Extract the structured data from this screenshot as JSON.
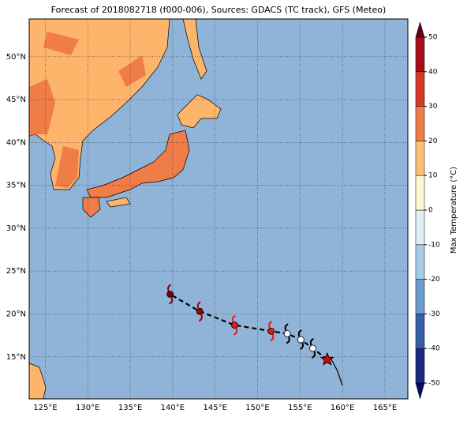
{
  "title": "Forecast of 2018082718 (f000-006), Sources: GDACS (TC track), GFS (Meteo)",
  "map": {
    "lon_range": [
      123.1,
      167.7
    ],
    "lat_range": [
      10.1,
      54.4
    ],
    "grid": true,
    "lon_ticks": [
      {
        "value": 125,
        "label": "125°E"
      },
      {
        "value": 130,
        "label": "130°E"
      },
      {
        "value": 135,
        "label": "135°E"
      },
      {
        "value": 140,
        "label": "140°E"
      },
      {
        "value": 145,
        "label": "145°E"
      },
      {
        "value": 150,
        "label": "150°E"
      },
      {
        "value": 155,
        "label": "155°E"
      },
      {
        "value": 160,
        "label": "160°E"
      },
      {
        "value": 165,
        "label": "165°E"
      }
    ],
    "lat_ticks": [
      {
        "value": 15,
        "label": "15°N"
      },
      {
        "value": 20,
        "label": "20°N"
      },
      {
        "value": 25,
        "label": "25°N"
      },
      {
        "value": 30,
        "label": "30°N"
      },
      {
        "value": 35,
        "label": "35°N"
      },
      {
        "value": 40,
        "label": "40°N"
      },
      {
        "value": 45,
        "label": "45°N"
      },
      {
        "value": 50,
        "label": "50°N"
      }
    ]
  },
  "colorbar": {
    "label": "Max Temperature (°C)",
    "range": [
      -50,
      50
    ],
    "ticks": [
      -50,
      -40,
      -30,
      -20,
      -10,
      0,
      10,
      20,
      30,
      40,
      50
    ],
    "colors": [
      "#1c2a80",
      "#3560a8",
      "#6c9ccc",
      "#a4cde4",
      "#dff0f4",
      "#fff6d2",
      "#fdbf78",
      "#f07c48",
      "#d63a26",
      "#a60f16"
    ],
    "extend_colors": [
      "#0a0c5c",
      "#660010"
    ]
  },
  "track": [
    {
      "lon": 158.2,
      "lat": 14.7,
      "color": "#e00000",
      "marker": "star"
    },
    {
      "lon": 156.5,
      "lat": 16.0,
      "color": "#ffffff",
      "marker": "storm"
    },
    {
      "lon": 155.1,
      "lat": 17.0,
      "color": "#ffffff",
      "marker": "storm"
    },
    {
      "lon": 153.5,
      "lat": 17.7,
      "color": "#ffffff",
      "marker": "storm"
    },
    {
      "lon": 151.6,
      "lat": 18.0,
      "color": "#e41a1c",
      "marker": "storm"
    },
    {
      "lon": 147.3,
      "lat": 18.7,
      "color": "#e41a1c",
      "marker": "storm"
    },
    {
      "lon": 143.2,
      "lat": 20.3,
      "color": "#a00000",
      "marker": "storm"
    },
    {
      "lon": 139.7,
      "lat": 22.3,
      "color": "#800000",
      "marker": "storm"
    }
  ]
}
